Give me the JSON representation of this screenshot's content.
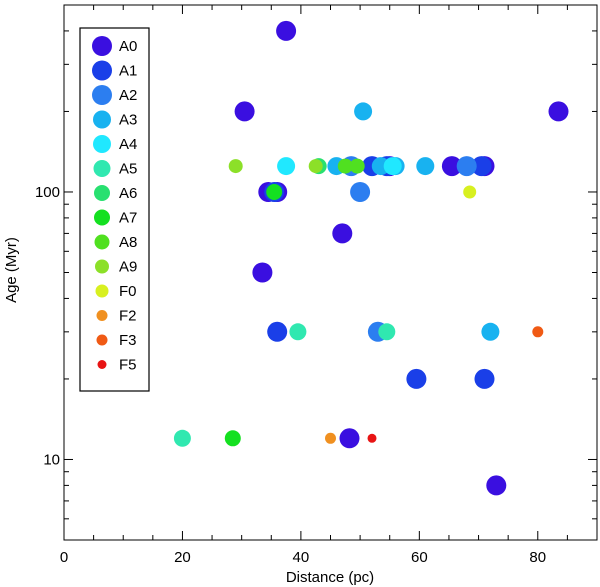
{
  "chart_data": {
    "type": "scatter",
    "xlabel": "Distance (pc)",
    "ylabel": "Age (Myr)",
    "xlim": [
      0,
      90
    ],
    "ylim": [
      5,
      500
    ],
    "yscale": "log",
    "x_ticks": [
      0,
      20,
      40,
      60,
      80
    ],
    "y_ticks": [
      10,
      100
    ],
    "grid": false,
    "legend_position": "top-left",
    "series": [
      {
        "name": "A0",
        "color": "#3a0fe0",
        "marker_scale": 1.0,
        "points": [
          [
            37.5,
            400
          ],
          [
            30.5,
            200
          ],
          [
            83.5,
            200
          ],
          [
            34.5,
            100
          ],
          [
            36.0,
            100
          ],
          [
            55.0,
            125
          ],
          [
            65.5,
            125
          ],
          [
            71.0,
            125
          ],
          [
            47.0,
            70
          ],
          [
            33.5,
            50
          ],
          [
            48.2,
            12
          ],
          [
            73.0,
            8
          ]
        ]
      },
      {
        "name": "A1",
        "color": "#1a3fe8",
        "marker_scale": 1.0,
        "points": [
          [
            35.5,
            100
          ],
          [
            52.0,
            125
          ],
          [
            54.5,
            125
          ],
          [
            70.5,
            125
          ],
          [
            36.0,
            30
          ],
          [
            59.5,
            20
          ],
          [
            71.0,
            20
          ]
        ]
      },
      {
        "name": "A2",
        "color": "#2c7ef0",
        "marker_scale": 1.0,
        "points": [
          [
            50.0,
            100
          ],
          [
            53.0,
            30
          ],
          [
            68.0,
            125
          ],
          [
            48.5,
            125
          ]
        ]
      },
      {
        "name": "A3",
        "color": "#18b2f0",
        "marker_scale": 0.9,
        "points": [
          [
            50.5,
            200
          ],
          [
            46.0,
            125
          ],
          [
            53.5,
            125
          ],
          [
            56.0,
            125
          ],
          [
            61.0,
            125
          ],
          [
            72.0,
            30
          ]
        ]
      },
      {
        "name": "A4",
        "color": "#20e8ff",
        "marker_scale": 0.9,
        "points": [
          [
            37.5,
            125
          ],
          [
            55.5,
            125
          ]
        ]
      },
      {
        "name": "A5",
        "color": "#30e8b0",
        "marker_scale": 0.85,
        "points": [
          [
            39.5,
            30
          ],
          [
            54.5,
            30
          ],
          [
            20.0,
            12
          ]
        ]
      },
      {
        "name": "A6",
        "color": "#28e070",
        "marker_scale": 0.8,
        "points": [
          [
            43.0,
            125
          ]
        ]
      },
      {
        "name": "A7",
        "color": "#14e020",
        "marker_scale": 0.8,
        "points": [
          [
            35.5,
            100
          ],
          [
            28.5,
            12
          ]
        ]
      },
      {
        "name": "A8",
        "color": "#50e020",
        "marker_scale": 0.75,
        "points": [
          [
            47.5,
            125
          ],
          [
            49.5,
            125
          ]
        ]
      },
      {
        "name": "A9",
        "color": "#8ce028",
        "marker_scale": 0.7,
        "points": [
          [
            29.0,
            125
          ],
          [
            42.5,
            125
          ]
        ]
      },
      {
        "name": "F0",
        "color": "#d8f020",
        "marker_scale": 0.65,
        "points": [
          [
            68.5,
            100
          ]
        ]
      },
      {
        "name": "F2",
        "color": "#f09020",
        "marker_scale": 0.55,
        "points": [
          [
            45.0,
            12
          ]
        ]
      },
      {
        "name": "F3",
        "color": "#f05a14",
        "marker_scale": 0.55,
        "points": [
          [
            80.0,
            30
          ]
        ]
      },
      {
        "name": "F5",
        "color": "#e81414",
        "marker_scale": 0.45,
        "points": [
          [
            52.0,
            12
          ]
        ]
      }
    ]
  }
}
